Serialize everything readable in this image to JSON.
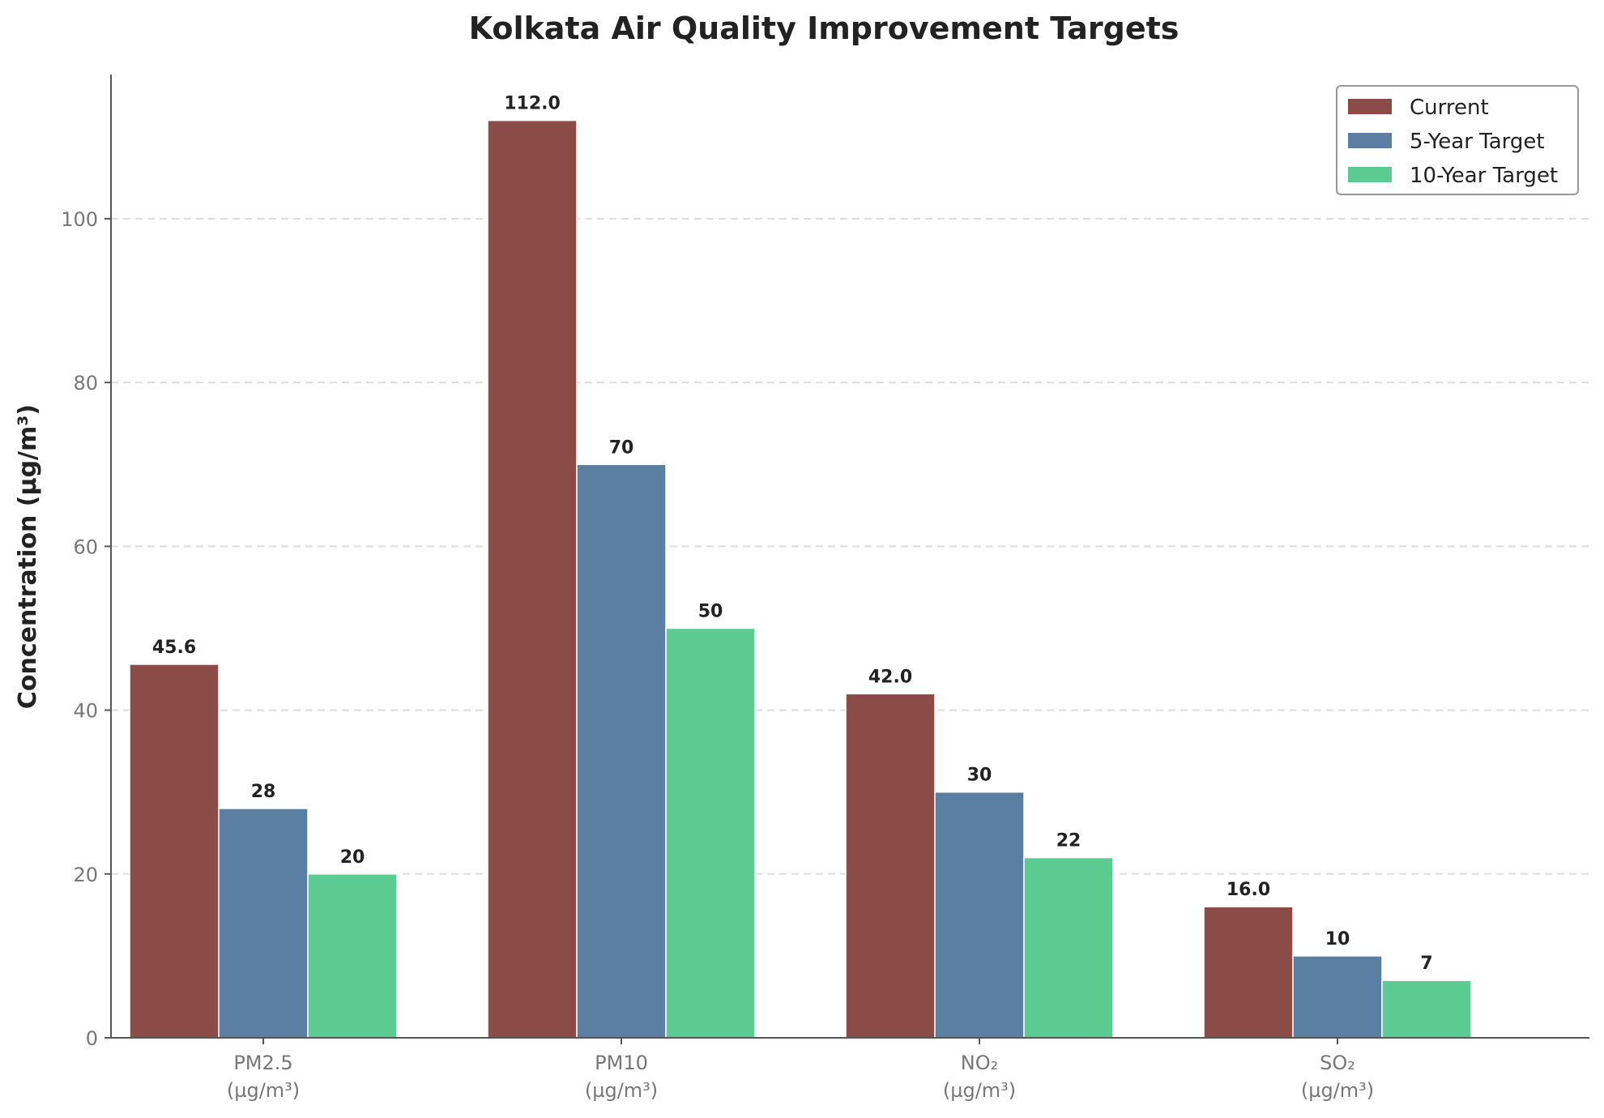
{
  "chart_data": {
    "type": "bar",
    "title": "Kolkata Air Quality Improvement Targets",
    "xlabel": "",
    "ylabel": "Concentration (µg/m³)",
    "categories": [
      {
        "name": "PM2.5",
        "unit": "(µg/m³)"
      },
      {
        "name": "PM10",
        "unit": "(µg/m³)"
      },
      {
        "name": "NO₂",
        "unit": "(µg/m³)"
      },
      {
        "name": "SO₂",
        "unit": "(µg/m³)"
      }
    ],
    "series": [
      {
        "name": "Current",
        "color": "#8b4c47",
        "values": [
          45.6,
          112.0,
          42.0,
          16.0
        ],
        "labels": [
          "45.6",
          "112.0",
          "42.0",
          "16.0"
        ]
      },
      {
        "name": "5-Year Target",
        "color": "#5a7fa3",
        "values": [
          28,
          70,
          30,
          10
        ],
        "labels": [
          "28",
          "70",
          "30",
          "10"
        ]
      },
      {
        "name": "10-Year Target",
        "color": "#5ccb91",
        "values": [
          20,
          50,
          22,
          7
        ],
        "labels": [
          "20",
          "50",
          "22",
          "7"
        ]
      }
    ],
    "ylim": [
      0,
      117.6
    ],
    "yticks": [
      0,
      20,
      40,
      60,
      80,
      100
    ],
    "grid": "y-dashed",
    "legend": "top-right"
  }
}
